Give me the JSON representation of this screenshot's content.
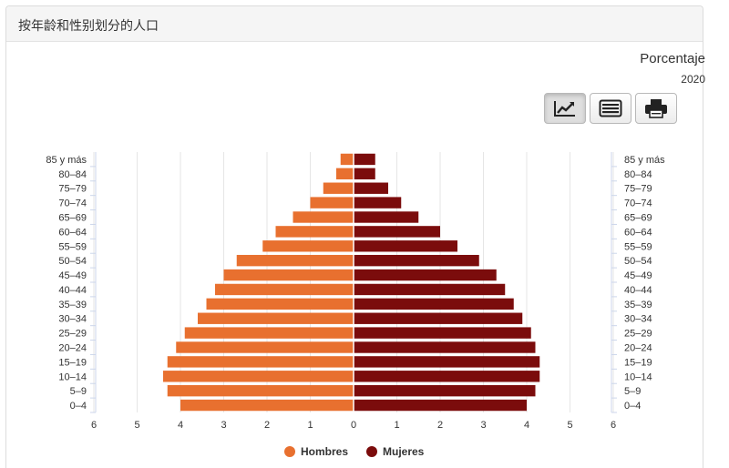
{
  "header": {
    "title": "按年龄和性别划分的人口"
  },
  "toolbar": {
    "buttons": [
      {
        "icon": "line-chart-icon",
        "active": true
      },
      {
        "icon": "table-view-icon",
        "active": false
      },
      {
        "icon": "print-icon",
        "active": false
      }
    ]
  },
  "colors": {
    "hombres": "#e8702f",
    "mujeres": "#7b0c0c",
    "grid": "#e6e6e6",
    "axis": "#ccd6eb"
  },
  "chart_data": {
    "type": "bar",
    "orientation": "horizontal-pyramid",
    "title": "Porcentaje",
    "subtitle": "2020",
    "categories": [
      "0–4",
      "5–9",
      "10–14",
      "15–19",
      "20–24",
      "25–29",
      "30–34",
      "35–39",
      "40–44",
      "45–49",
      "50–54",
      "55–59",
      "60–64",
      "65–69",
      "70–74",
      "75–79",
      "80–84",
      "85 y más"
    ],
    "series": [
      {
        "name": "Hombres",
        "values": [
          4.0,
          4.3,
          4.4,
          4.3,
          4.1,
          3.9,
          3.6,
          3.4,
          3.2,
          3.0,
          2.7,
          2.1,
          1.8,
          1.4,
          1.0,
          0.7,
          0.4,
          0.3
        ]
      },
      {
        "name": "Mujeres",
        "values": [
          4.0,
          4.2,
          4.3,
          4.3,
          4.2,
          4.1,
          3.9,
          3.7,
          3.5,
          3.3,
          2.9,
          2.4,
          2.0,
          1.5,
          1.1,
          0.8,
          0.5,
          0.5
        ]
      }
    ],
    "xlim": [
      -6,
      6
    ],
    "xticks": [
      "6",
      "5",
      "4",
      "3",
      "2",
      "1",
      "0",
      "1",
      "2",
      "3",
      "4",
      "5",
      "6"
    ],
    "grid": true,
    "legend_position": "bottom-center"
  }
}
